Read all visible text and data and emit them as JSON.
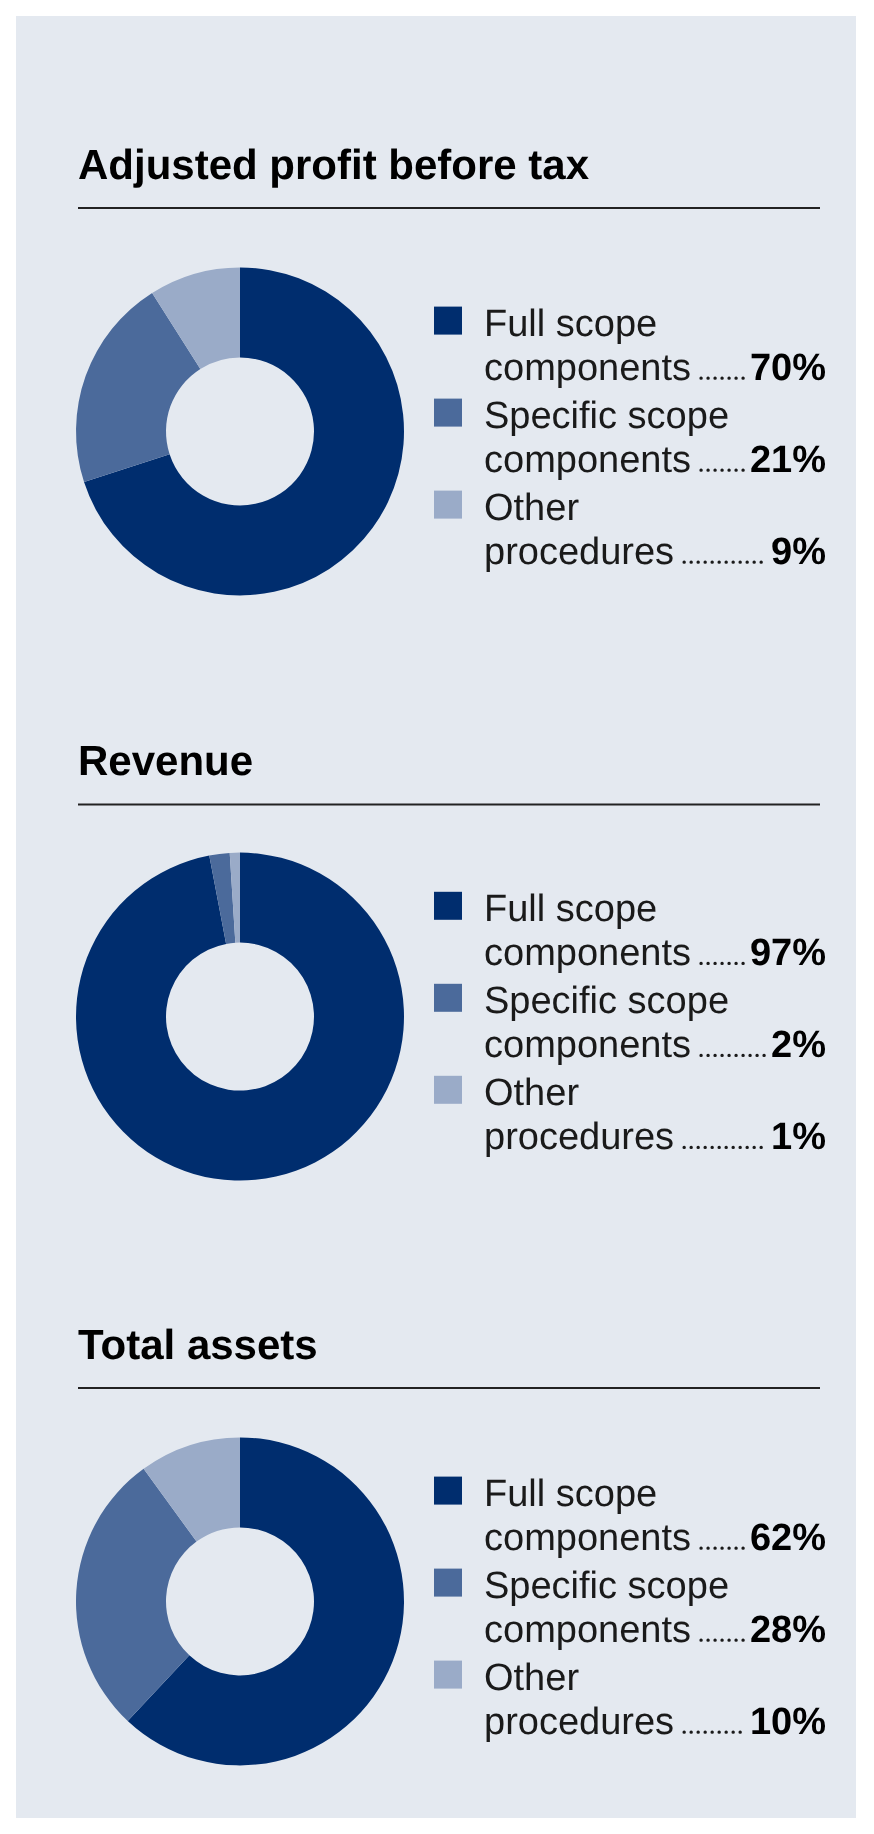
{
  "chart_data": [
    {
      "type": "donut",
      "title": "Adjusted profit before tax",
      "categories": [
        "Full scope components",
        "Specific scope components",
        "Other procedures"
      ],
      "values": [
        70,
        21,
        9
      ],
      "colors": [
        "#002d6e",
        "#4b6a9b",
        "#9aabc8"
      ],
      "value_labels": [
        "70%",
        "21%",
        "9%"
      ],
      "legend": "right"
    },
    {
      "type": "donut",
      "title": "Revenue",
      "categories": [
        "Full scope components",
        "Specific scope components",
        "Other procedures"
      ],
      "values": [
        97,
        2,
        1
      ],
      "colors": [
        "#002d6e",
        "#4b6a9b",
        "#9aabc8"
      ],
      "value_labels": [
        "97%",
        "2%",
        "1%"
      ],
      "legend": "right"
    },
    {
      "type": "donut",
      "title": "Total assets",
      "categories": [
        "Full scope components",
        "Specific scope components",
        "Other procedures"
      ],
      "values": [
        62,
        28,
        10
      ],
      "colors": [
        "#002d6e",
        "#4b6a9b",
        "#9aabc8"
      ],
      "value_labels": [
        "62%",
        "28%",
        "10%"
      ],
      "legend": "right"
    }
  ]
}
